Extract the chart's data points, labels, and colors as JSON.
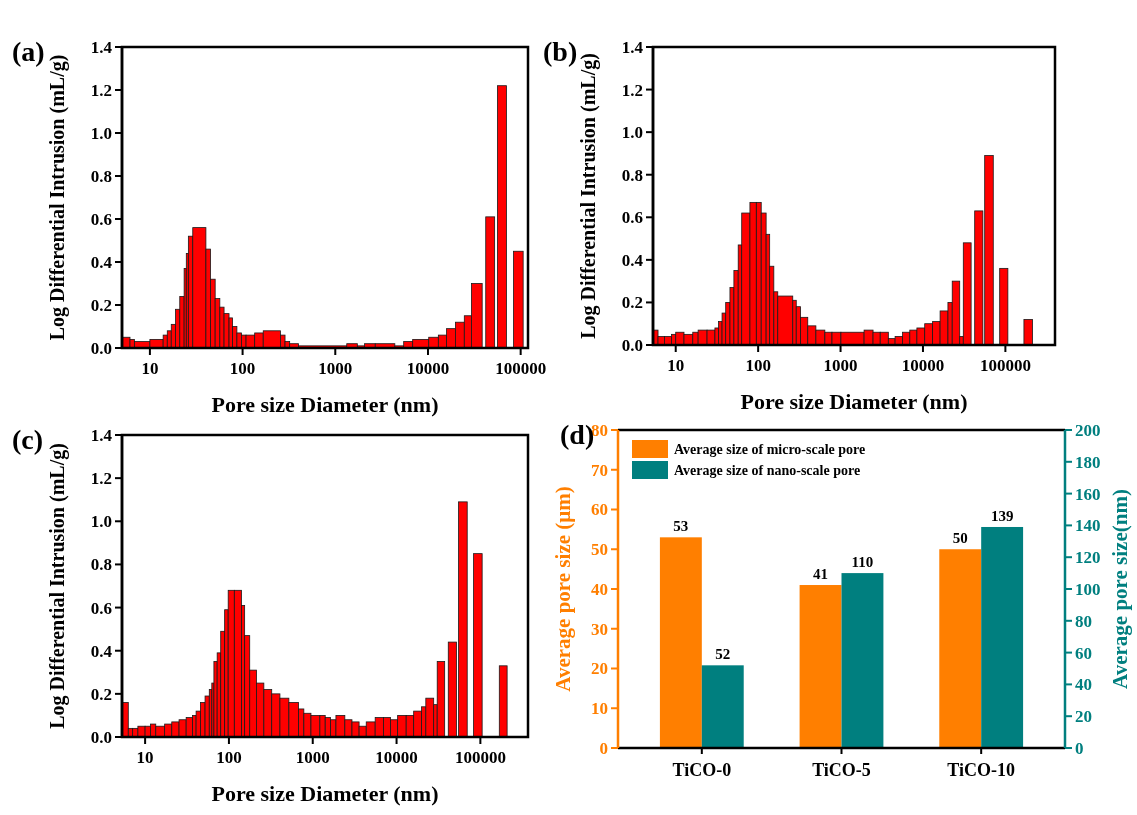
{
  "chart_data": [
    {
      "type": "histogram",
      "title": "(a)",
      "xlabel": "Pore size Diameter (nm)",
      "ylabel": "Log Differential Intrusion (mL/g)",
      "color": "#ff0000",
      "log": "x",
      "xlim": [
        5,
        120000
      ],
      "xticks": [
        10,
        100,
        1000,
        10000,
        100000
      ],
      "ylim": [
        0,
        1.4
      ],
      "yticks": [
        {
          "value": 0,
          "label": "0.0"
        },
        {
          "value": 0.2,
          "label": "0.2"
        },
        {
          "value": 0.4,
          "label": "0.4"
        },
        {
          "value": 0.6,
          "label": "0.6"
        },
        {
          "value": 0.8,
          "label": "0.8"
        },
        {
          "value": 1,
          "label": "1.0"
        },
        {
          "value": 1.2,
          "label": "1.2"
        },
        {
          "value": 1.4,
          "label": "1.4"
        }
      ],
      "bins": [
        5.0,
        6.1,
        6.8,
        10,
        13.9,
        15.4,
        17.0,
        18.9,
        21.0,
        23.4,
        24.7,
        26.0,
        29.0,
        40.2,
        45.1,
        50.6,
        56.8,
        63.1,
        71.4,
        78.0,
        86.8,
        97.3,
        109,
        135,
        167,
        256,
        287,
        322,
        402,
        1330,
        1730,
        2070,
        2700,
        4390,
        5470,
        6840,
        10190,
        12940,
        15850,
        19770,
        24660,
        29440,
        38450,
        42000,
        52400,
        56200,
        70200,
        83800,
        106400
      ],
      "values": [
        0.05,
        0.04,
        0.03,
        0.04,
        0.06,
        0.08,
        0.11,
        0.18,
        0.24,
        0.37,
        0.44,
        0.52,
        0.56,
        0.46,
        0.32,
        0.23,
        0.19,
        0.16,
        0.14,
        0.1,
        0.07,
        0.06,
        0.06,
        0.07,
        0.08,
        0.06,
        0.03,
        0.02,
        0.01,
        0.02,
        0.01,
        0.02,
        0.02,
        0.01,
        0.03,
        0.04,
        0.05,
        0.06,
        0.09,
        0.12,
        0.15,
        0.3,
        0,
        0.61,
        0,
        1.22,
        0,
        0.45
      ]
    },
    {
      "type": "histogram",
      "title": "(b)",
      "xlabel": "Pore size Diameter (nm)",
      "ylabel": "Log Differential Intrusion (mL/g)",
      "color": "#ff0000",
      "log": "x",
      "xlim": [
        5.3,
        400000
      ],
      "xticks": [
        10,
        100,
        1000,
        10000,
        100000
      ],
      "ylim": [
        0,
        1.4
      ],
      "yticks": [
        {
          "value": 0,
          "label": "0.0"
        },
        {
          "value": 0.2,
          "label": "0.2"
        },
        {
          "value": 0.4,
          "label": "0.4"
        },
        {
          "value": 0.6,
          "label": "0.6"
        },
        {
          "value": 0.8,
          "label": "0.8"
        },
        {
          "value": 1,
          "label": "1.0"
        },
        {
          "value": 1.2,
          "label": "1.2"
        },
        {
          "value": 1.4,
          "label": "1.4"
        }
      ],
      "bins": [
        5.3,
        6.1,
        7.3,
        8.9,
        10,
        12.6,
        16.1,
        18.7,
        24.0,
        29.9,
        33.1,
        36.5,
        40.4,
        45.5,
        50.8,
        57.3,
        63.2,
        79.5,
        95.1,
        109,
        125,
        138,
        155,
        173,
        263,
        290,
        327,
        400,
        502,
        645,
        787,
        1010,
        1930,
        2480,
        3030,
        3800,
        4590,
        5660,
        6920,
        8440,
        10500,
        13090,
        16140,
        20090,
        22650,
        27920,
        30860,
        38400,
        42430,
        53330,
        56100,
        71290,
        85300,
        107200,
        167900,
        213300
      ],
      "values": [
        0.07,
        0.04,
        0.04,
        0.05,
        0.06,
        0.05,
        0.06,
        0.07,
        0.07,
        0.08,
        0.11,
        0.15,
        0.2,
        0.27,
        0.35,
        0.47,
        0.62,
        0.67,
        0.67,
        0.62,
        0.52,
        0.37,
        0.25,
        0.23,
        0.21,
        0.18,
        0.13,
        0.09,
        0.07,
        0.06,
        0.06,
        0.06,
        0.07,
        0.06,
        0.06,
        0.03,
        0.04,
        0.06,
        0.07,
        0.08,
        0.1,
        0.11,
        0.16,
        0.2,
        0.3,
        0.04,
        0.48,
        0,
        0.63,
        0,
        0.89,
        0,
        0.36,
        0,
        0.12
      ]
    },
    {
      "type": "histogram",
      "title": "(c)",
      "xlabel": "Pore size Diameter (nm)",
      "ylabel": "Log Differential Intrusion (mL/g)",
      "color": "#ff0000",
      "log": "x",
      "xlim": [
        5.3,
        370000
      ],
      "xticks": [
        10,
        100,
        1000,
        10000,
        100000
      ],
      "ylim": [
        0,
        1.4
      ],
      "yticks": [
        {
          "value": 0,
          "label": "0.0"
        },
        {
          "value": 0.2,
          "label": "0.2"
        },
        {
          "value": 0.4,
          "label": "0.4"
        },
        {
          "value": 0.6,
          "label": "0.6"
        },
        {
          "value": 0.8,
          "label": "0.8"
        },
        {
          "value": 1,
          "label": "1.0"
        },
        {
          "value": 1.2,
          "label": "1.2"
        },
        {
          "value": 1.4,
          "label": "1.4"
        }
      ],
      "bins": [
        5.3,
        6.3,
        7.1,
        8.2,
        10,
        11.6,
        13.4,
        17.1,
        20.8,
        25.4,
        30.9,
        36.8,
        40.6,
        45.7,
        51.9,
        58.3,
        62.5,
        66.2,
        72.4,
        79.8,
        88.9,
        98.0,
        116,
        141,
        154,
        177,
        213,
        261,
        324,
        406,
        519,
        676,
        783,
        952,
        1216,
        1409,
        1632,
        1891,
        2415,
        2938,
        3573,
        4347,
        5559,
        6966,
        8472,
        10300,
        13030,
        16000,
        19860,
        22340,
        27730,
        30550,
        37500,
        41400,
        51860,
        54960,
        69660,
        82990,
        105000,
        168200,
        208500
      ],
      "values": [
        0.16,
        0.04,
        0.04,
        0.05,
        0.05,
        0.06,
        0.05,
        0.06,
        0.07,
        0.08,
        0.09,
        0.1,
        0.12,
        0.16,
        0.19,
        0.22,
        0.25,
        0.35,
        0.39,
        0.49,
        0.59,
        0.68,
        0.68,
        0.61,
        0.47,
        0.31,
        0.25,
        0.22,
        0.2,
        0.18,
        0.16,
        0.13,
        0.11,
        0.1,
        0.1,
        0.09,
        0.08,
        0.1,
        0.08,
        0.07,
        0.05,
        0.07,
        0.09,
        0.09,
        0.08,
        0.1,
        0.1,
        0.12,
        0.14,
        0.18,
        0.15,
        0.35,
        0,
        0.44,
        0,
        1.09,
        0,
        0.85,
        0,
        0.33
      ]
    },
    {
      "type": "bar",
      "title": "(d)",
      "ylabel": "Average pore size (μm)",
      "y2label": "Average pore size(nm)",
      "categories": [
        "TiCO-0",
        "TiCO-5",
        "TiCO-10"
      ],
      "ylim": [
        0,
        80
      ],
      "yticks": [
        0,
        10,
        20,
        30,
        40,
        50,
        60,
        70,
        80
      ],
      "y2lim": [
        0,
        200
      ],
      "y2ticks": [
        0,
        20,
        40,
        60,
        80,
        100,
        120,
        140,
        160,
        180,
        200
      ],
      "legend": "top left",
      "data_labels": true,
      "series": [
        {
          "name": "Average size of micro-scale pore",
          "color": "#ff7f00",
          "values": [
            53,
            41,
            50
          ]
        },
        {
          "name": "Average size of nano-scale pore",
          "color": "#007f7f",
          "values": [
            52,
            110,
            139
          ],
          "axis": "y2"
        }
      ]
    }
  ]
}
